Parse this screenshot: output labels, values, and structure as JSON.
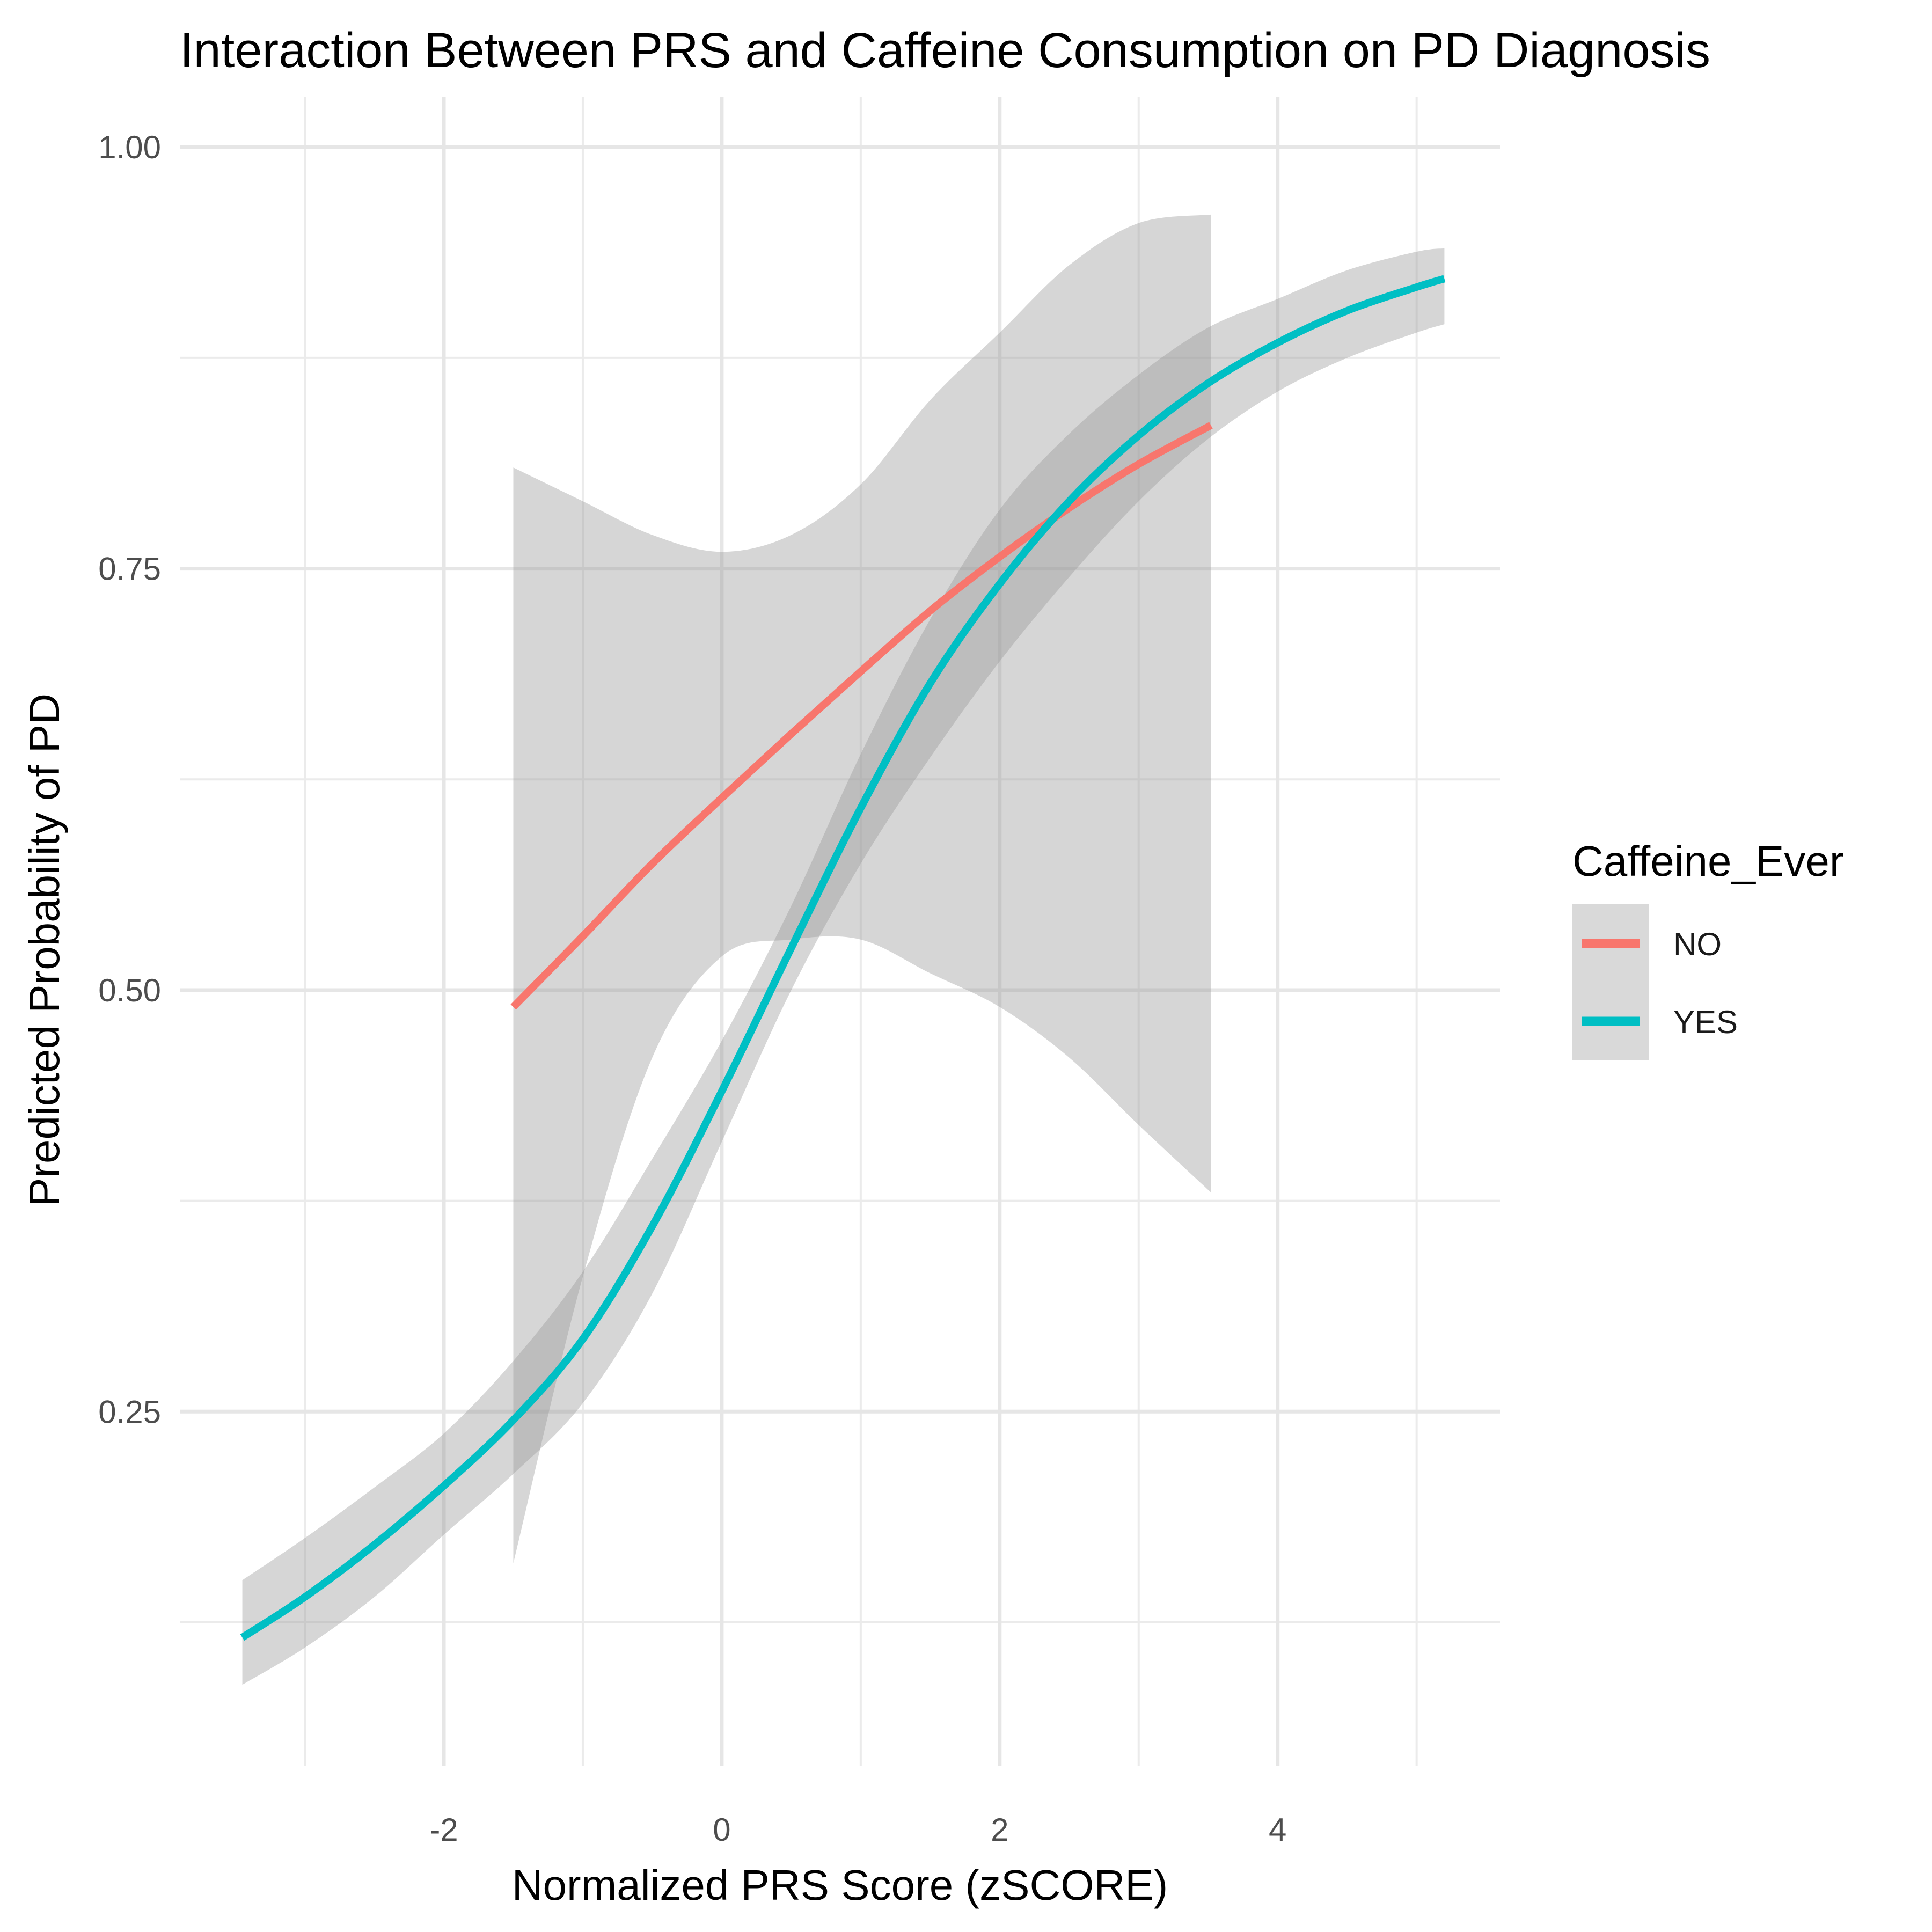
{
  "chart_data": {
    "type": "line",
    "title": "Interaction Between PRS and Caffeine Consumption on PD Diagnosis",
    "xlabel": "Normalized PRS Score (zSCORE)",
    "ylabel": "Predicted Probability of PD",
    "xlim": [
      -3.9,
      5.6
    ],
    "ylim": [
      0.04,
      1.03
    ],
    "x_ticks": [
      -2,
      0,
      2,
      4
    ],
    "x_tick_labels": [
      "-2",
      "0",
      "2",
      "4"
    ],
    "y_ticks": [
      0.25,
      0.5,
      0.75,
      1.0
    ],
    "y_tick_labels": [
      "0.25",
      "0.50",
      "0.75",
      "1.00"
    ],
    "grid": true,
    "confidence_band": true,
    "legend": {
      "title": "Caffeine_Ever",
      "position": "right",
      "entries": [
        "NO",
        "YES"
      ]
    },
    "series": [
      {
        "name": "NO",
        "color": "#F8766D",
        "x": [
          -1.5,
          -1.0,
          -0.5,
          0.0,
          0.5,
          1.0,
          1.5,
          2.0,
          2.5,
          3.0,
          3.52
        ],
        "y": [
          0.49,
          0.532,
          0.575,
          0.614,
          0.652,
          0.689,
          0.725,
          0.757,
          0.786,
          0.812,
          0.835
        ],
        "lower": [
          0.16,
          0.33,
          0.46,
          0.52,
          0.53,
          0.53,
          0.51,
          0.49,
          0.46,
          0.42,
          0.38
        ],
        "upper": [
          0.81,
          0.79,
          0.77,
          0.76,
          0.77,
          0.8,
          0.85,
          0.89,
          0.93,
          0.955,
          0.96
        ]
      },
      {
        "name": "YES",
        "color": "#00BFC4",
        "x": [
          -3.45,
          -3.0,
          -2.5,
          -2.0,
          -1.5,
          -1.0,
          -0.5,
          0.0,
          0.5,
          1.0,
          1.5,
          2.0,
          2.5,
          3.0,
          3.5,
          4.0,
          4.5,
          5.0,
          5.2
        ],
        "y": [
          0.116,
          0.14,
          0.171,
          0.206,
          0.245,
          0.293,
          0.36,
          0.44,
          0.525,
          0.608,
          0.682,
          0.741,
          0.79,
          0.829,
          0.86,
          0.884,
          0.903,
          0.917,
          0.922
        ],
        "lower": [
          0.088,
          0.11,
          0.14,
          0.177,
          0.213,
          0.255,
          0.32,
          0.41,
          0.5,
          0.575,
          0.638,
          0.695,
          0.745,
          0.79,
          0.827,
          0.855,
          0.875,
          0.89,
          0.895
        ],
        "upper": [
          0.15,
          0.175,
          0.205,
          0.237,
          0.28,
          0.333,
          0.4,
          0.47,
          0.55,
          0.64,
          0.72,
          0.785,
          0.83,
          0.865,
          0.893,
          0.91,
          0.927,
          0.938,
          0.94
        ]
      }
    ]
  }
}
